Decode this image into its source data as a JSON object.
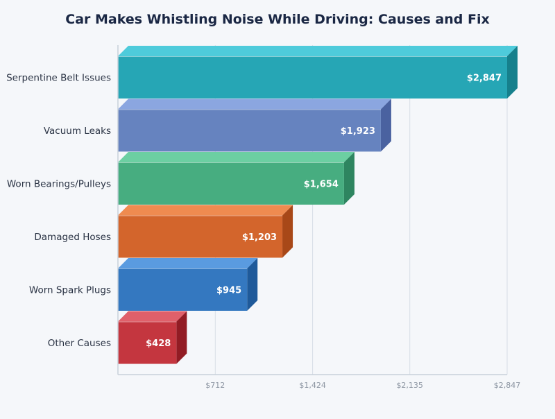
{
  "chart_data": {
    "type": "bar",
    "orientation": "horizontal",
    "style": "3d",
    "title": "Car Makes Whistling Noise While Driving: Causes and Fix",
    "xlabel": "",
    "ylabel": "",
    "xlim": [
      0,
      2847
    ],
    "x_ticks": [
      "$712",
      "$1,424",
      "$2,135",
      "$2,847"
    ],
    "x_tick_values": [
      712,
      1424,
      2135,
      2847
    ],
    "grid": true,
    "categories": [
      "Serpentine Belt Issues",
      "Vacuum Leaks",
      "Worn Bearings/Pulleys",
      "Damaged Hoses",
      "Worn Spark Plugs",
      "Other Causes"
    ],
    "values": [
      2847,
      1923,
      1654,
      1203,
      945,
      428
    ],
    "data_labels": [
      "$2,847",
      "$1,923",
      "$1,654",
      "$1,203",
      "$945",
      "$428"
    ],
    "colors": [
      {
        "front": "#26a6b5",
        "top": "#4ecbdb",
        "side": "#16808c"
      },
      {
        "front": "#6683bf",
        "top": "#8ba6e0",
        "side": "#4a62a0"
      },
      {
        "front": "#47ad80",
        "top": "#6ccfa2",
        "side": "#2e8560"
      },
      {
        "front": "#d3652c",
        "top": "#ef8b50",
        "side": "#a84818"
      },
      {
        "front": "#3478c0",
        "top": "#5a9be0",
        "side": "#1f5a9a"
      },
      {
        "front": "#c4363f",
        "top": "#e0606a",
        "side": "#921c24"
      }
    ]
  }
}
